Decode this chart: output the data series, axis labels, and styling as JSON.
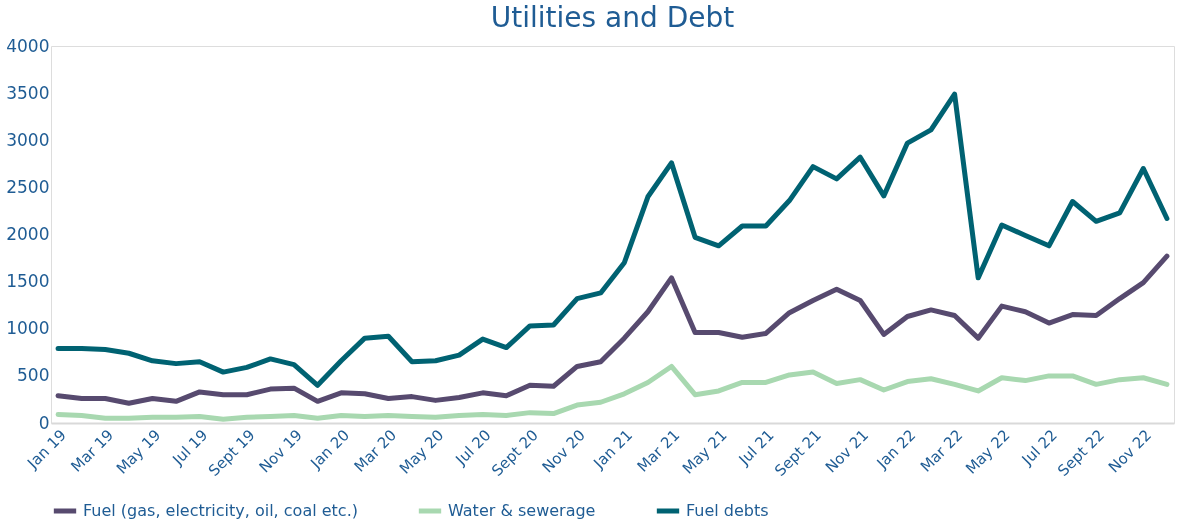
{
  "chart_data": {
    "type": "line",
    "title": "Utilities and Debt",
    "categories": [
      "Jan 19",
      null,
      "Mar 19",
      null,
      "May 19",
      null,
      "Jul 19",
      null,
      "Sept 19",
      null,
      "Nov 19",
      null,
      "Jan 20",
      null,
      "Mar 20",
      null,
      "May 20",
      null,
      "Jul 20",
      null,
      "Sept 20",
      null,
      "Nov 20",
      null,
      "Jan 21",
      null,
      "Mar 21",
      null,
      "May 21",
      null,
      "Jul 21",
      null,
      "Sept 21",
      null,
      "Nov 21",
      null,
      "Jan 22",
      null,
      "Mar 22",
      null,
      "May 22",
      null,
      "Jul 22",
      null,
      "Sept 22",
      null,
      "Nov 22",
      null
    ],
    "series": [
      {
        "name": "Fuel (gas, electricity, oil, coal etc.)",
        "color": "#574a6f",
        "values": [
          290,
          260,
          260,
          210,
          260,
          230,
          330,
          300,
          300,
          360,
          370,
          230,
          320,
          310,
          260,
          280,
          240,
          270,
          320,
          290,
          400,
          390,
          600,
          650,
          900,
          1180,
          1540,
          960,
          960,
          910,
          950,
          1170,
          1300,
          1420,
          1300,
          940,
          1130,
          1200,
          1140,
          900,
          1240,
          1180,
          1060,
          1150,
          1140,
          1320,
          1490,
          1770
        ]
      },
      {
        "name": "Water & sewerage",
        "color": "#a8d8b0",
        "values": [
          90,
          80,
          50,
          50,
          60,
          60,
          70,
          40,
          60,
          70,
          80,
          50,
          80,
          70,
          80,
          70,
          60,
          80,
          90,
          80,
          110,
          100,
          190,
          220,
          310,
          430,
          600,
          300,
          340,
          430,
          430,
          510,
          540,
          420,
          460,
          350,
          440,
          470,
          410,
          340,
          480,
          450,
          500,
          500,
          410,
          460,
          480,
          410
        ]
      },
      {
        "name": "Fuel debts",
        "color": "#006272",
        "values": [
          790,
          790,
          780,
          740,
          660,
          630,
          650,
          540,
          590,
          680,
          620,
          400,
          660,
          900,
          920,
          650,
          660,
          720,
          890,
          800,
          1030,
          1040,
          1320,
          1380,
          1700,
          2400,
          2760,
          1970,
          1880,
          2090,
          2090,
          2360,
          2720,
          2590,
          2820,
          2410,
          2970,
          3110,
          3490,
          1540,
          2100,
          1990,
          1880,
          2350,
          2140,
          2230,
          2700,
          2170
        ]
      }
    ],
    "ylim": [
      0,
      4000
    ],
    "yticks": [
      0,
      500,
      1000,
      1500,
      2000,
      2500,
      3000,
      3500,
      4000
    ],
    "grid": false,
    "legend": "bottom",
    "marker": "none",
    "line_style": "solid"
  }
}
